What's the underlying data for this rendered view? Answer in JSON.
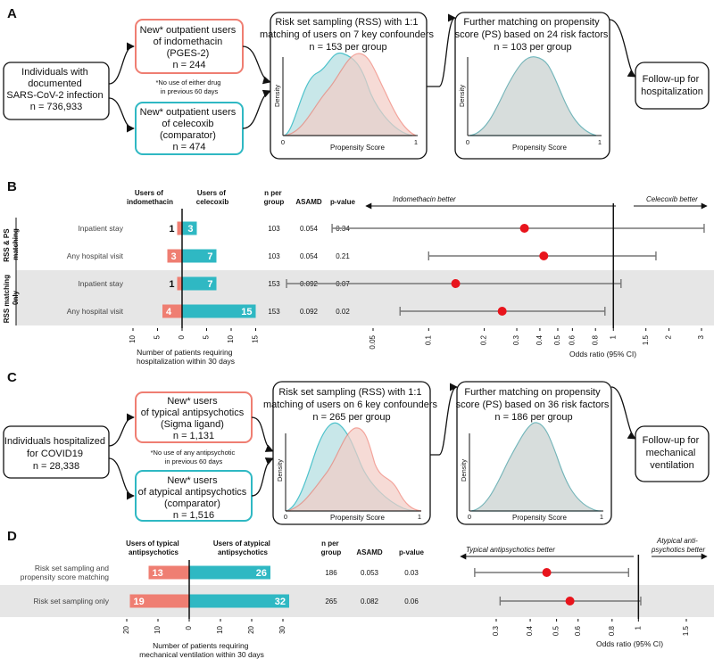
{
  "panel_labels": {
    "a": "A",
    "b": "B",
    "c": "C",
    "d": "D"
  },
  "colors": {
    "indomethacin": "#ef7e72",
    "celecoxib": "#2fb8c3",
    "density_teal": "#bfe3e6",
    "density_red": "#f3cdc6",
    "point": "#e8141c",
    "shade": "#e6e6e6",
    "ci_line": "#777777"
  },
  "panel_a": {
    "source": [
      "Individuals with",
      "documented",
      "SARS-CoV-2 infection",
      "n = 736,933"
    ],
    "exposed": [
      "New* outpatient users",
      "of indomethacin",
      "(PGES-2)",
      "n = 244"
    ],
    "note": [
      "*No use of either drug",
      "in previous 60 days"
    ],
    "comparator": [
      "New* outpatient users",
      "of celecoxib",
      "(comparator)",
      "n = 474"
    ],
    "rss": [
      "Risk set sampling (RSS) with 1:1",
      "matching of users on 7 key confounders",
      "n = 153 per group"
    ],
    "ps": [
      "Further matching on propensity",
      "score (PS) based on 24 risk factors",
      "n = 103 per group"
    ],
    "outcome": [
      "Follow-up for",
      "hospitalization"
    ],
    "density_label": "Density",
    "ps_label": "Propensity Score",
    "axis_zero": "0",
    "axis_one": "1"
  },
  "panel_b": {
    "col_exposed": [
      "Users of",
      "indomethacin"
    ],
    "col_comparator": [
      "Users of",
      "celecoxib"
    ],
    "col_n": [
      "n per",
      "group"
    ],
    "col_asamd": "ASAMD",
    "col_p": "p-value",
    "group1": [
      "RSS & PS",
      "matching"
    ],
    "group2": [
      "RSS matching",
      "0nly"
    ],
    "rows": [
      {
        "label": "Inpatient stay",
        "exposed": 1,
        "comparator": 3,
        "n": "103",
        "asamd": "0.054",
        "p": "0.34",
        "or": 0.33,
        "lo": 0.03,
        "hi": 3.1
      },
      {
        "label": "Any hospital visit",
        "exposed": 3,
        "comparator": 7,
        "n": "103",
        "asamd": "0.054",
        "p": "0.21",
        "or": 0.42,
        "lo": 0.1,
        "hi": 1.7
      },
      {
        "label": "Inpatient stay",
        "exposed": 1,
        "comparator": 7,
        "n": "153",
        "asamd": "0.092",
        "p": "0.07",
        "or": 0.14,
        "lo": 0.017,
        "hi": 1.1
      },
      {
        "label": "Any hospital visit",
        "exposed": 4,
        "comparator": 15,
        "n": "153",
        "asamd": "0.092",
        "p": "0.02",
        "or": 0.25,
        "lo": 0.07,
        "hi": 0.9
      }
    ],
    "bar_ticks": [
      10,
      5,
      0,
      5,
      10,
      15
    ],
    "bar_xlabel": [
      "Number of patients requiring",
      "hospitalization within 30 days"
    ],
    "or_ticks": [
      "0.05",
      "0.1",
      "0.2",
      "0.3",
      "0.4",
      "0.5",
      "0.6",
      "0.8",
      "1",
      "1.5",
      "2",
      "3"
    ],
    "or_label": "Odds ratio (95% CI)",
    "favors_left": "Indomethacin better",
    "favors_right": "Celecoxib better"
  },
  "panel_c": {
    "source": [
      "Individuals hospitalized",
      "for COVID19",
      "n = 28,338"
    ],
    "exposed": [
      "New* users",
      "of typical antipsychotics",
      "(Sigma ligand)",
      "n = 1,131"
    ],
    "note": [
      "*No use of any antipsychotic",
      "in previous 60 days"
    ],
    "comparator": [
      "New* users",
      "of atypical antipsychotics",
      "(comparator)",
      "n = 1,516"
    ],
    "rss": [
      "Risk set sampling (RSS) with 1:1",
      "matching of users on 6 key confounders",
      "n = 265 per group"
    ],
    "ps": [
      "Further matching on propensity",
      "score (PS) based on 36 risk factors",
      "n = 186 per group"
    ],
    "outcome": [
      "Follow-up for",
      "mechanical",
      "ventilation"
    ],
    "density_label": "Density",
    "ps_label": "Propensity Score",
    "axis_zero": "0",
    "axis_one": "1"
  },
  "panel_d": {
    "col_exposed": [
      "Users of typical",
      "antipsychotics"
    ],
    "col_comparator": [
      "Users of atypical",
      "antipsychotics"
    ],
    "col_n": [
      "n per",
      "group"
    ],
    "col_asamd": "ASAMD",
    "col_p": "p-value",
    "rows": [
      {
        "label": [
          "Risk set sampling and",
          "propensity score matching"
        ],
        "exposed": 13,
        "comparator": 26,
        "n": "186",
        "asamd": "0.053",
        "p": "0.03",
        "or": 0.46,
        "lo": 0.25,
        "hi": 0.92
      },
      {
        "label": [
          "Risk set sampling only"
        ],
        "exposed": 19,
        "comparator": 32,
        "n": "265",
        "asamd": "0.082",
        "p": "0.06",
        "or": 0.56,
        "lo": 0.31,
        "hi": 1.02
      }
    ],
    "bar_ticks": [
      20,
      10,
      0,
      10,
      20,
      30
    ],
    "bar_xlabel": [
      "Number of patients requiring",
      "mechanical ventilation within 30 days"
    ],
    "or_ticks": [
      "0.3",
      "0.4",
      "0.5",
      "0.6",
      "0.8",
      "1",
      "1.5"
    ],
    "or_label": "Odds ratio (95% CI)",
    "favors_left": "Typical antipsychotics better",
    "favors_right": [
      "Atypical anti-",
      "psychotics better"
    ]
  }
}
